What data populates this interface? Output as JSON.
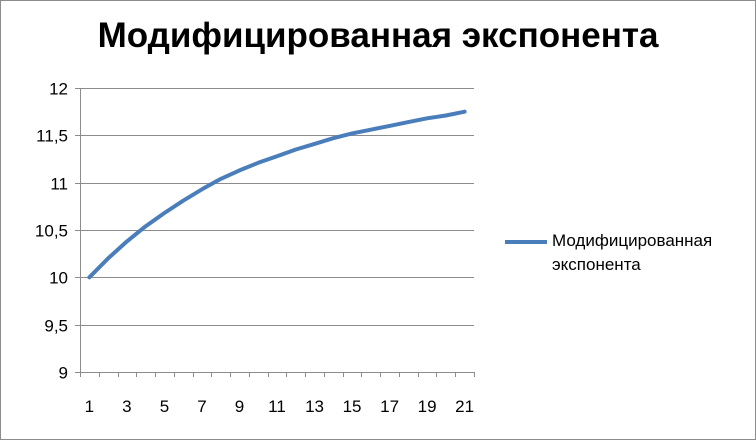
{
  "chart_data": {
    "type": "line",
    "title": "Модифицированная экспонента",
    "xlabel": "",
    "ylabel": "",
    "ylim": [
      9,
      12
    ],
    "y_ticks": [
      "9",
      "9,5",
      "10",
      "10,5",
      "11",
      "11,5",
      "12"
    ],
    "y_tick_values": [
      9,
      9.5,
      10,
      10.5,
      11,
      11.5,
      12
    ],
    "x_ticks": [
      "1",
      "3",
      "5",
      "7",
      "9",
      "11",
      "13",
      "15",
      "17",
      "19",
      "21"
    ],
    "x": [
      1,
      2,
      3,
      4,
      5,
      6,
      7,
      8,
      9,
      10,
      11,
      12,
      13,
      14,
      15,
      16,
      17,
      18,
      19,
      20,
      21
    ],
    "grid": true,
    "legend_position": "right",
    "series": [
      {
        "name": "Модифицированная экспонента",
        "color": "#4a7ebb",
        "values": [
          10.0,
          10.2,
          10.38,
          10.54,
          10.68,
          10.81,
          10.93,
          11.04,
          11.13,
          11.21,
          11.28,
          11.35,
          11.41,
          11.47,
          11.52,
          11.56,
          11.6,
          11.64,
          11.68,
          11.71,
          11.75
        ]
      }
    ]
  }
}
